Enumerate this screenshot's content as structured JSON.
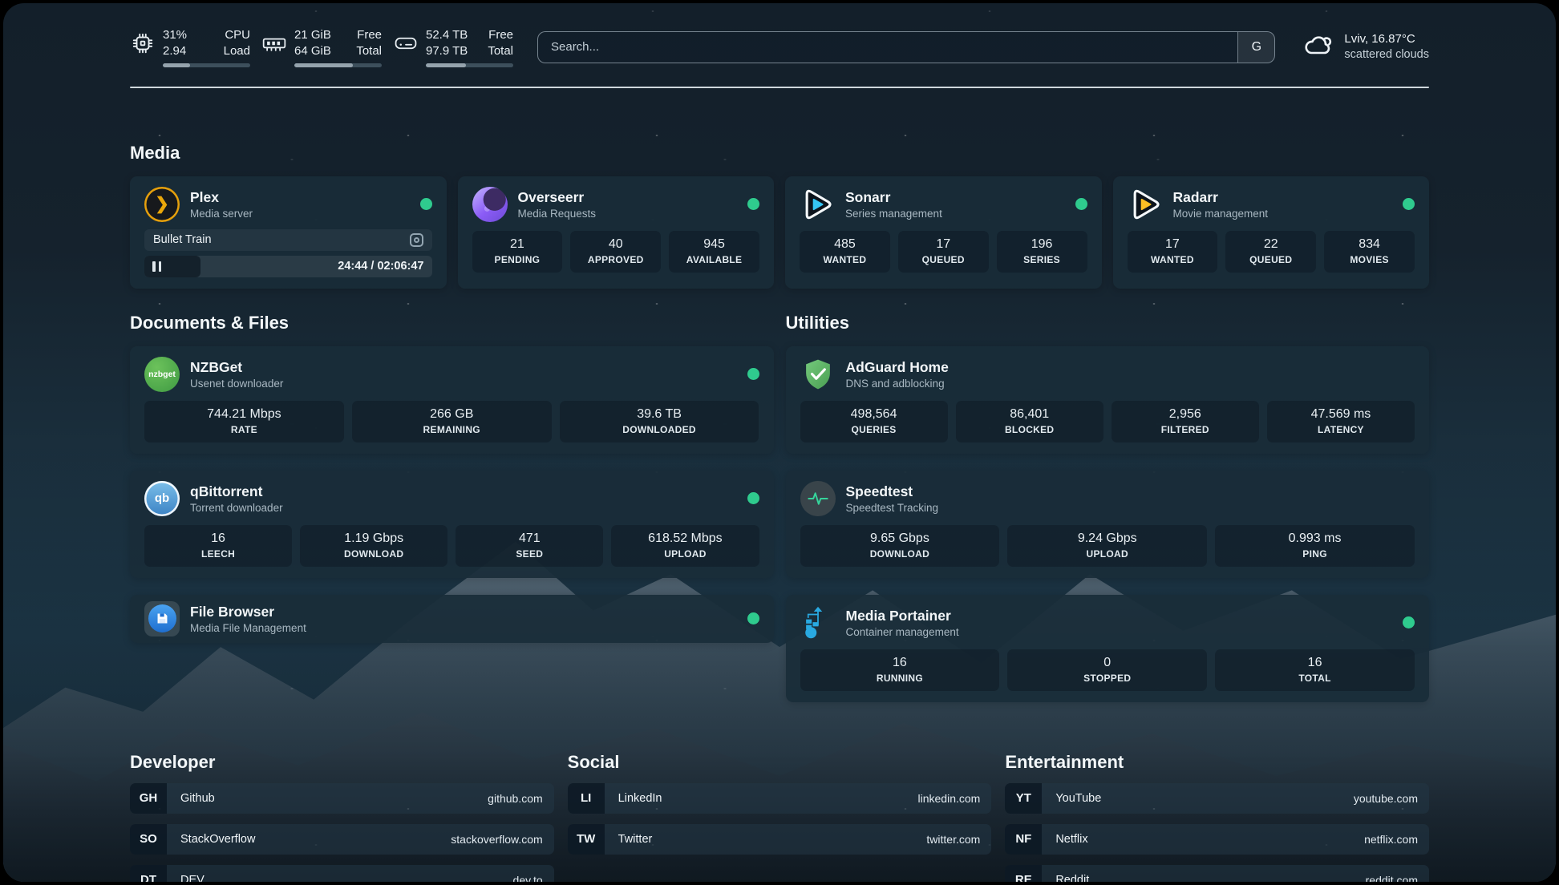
{
  "colors": {
    "status_online": "#2fcb8e",
    "divider": "#e9f0f5",
    "card_bg": "#192c38",
    "accent_plex": "#e5a00d"
  },
  "topbar": {
    "cpu": {
      "icon": "cpu-icon",
      "values": [
        "31%",
        "2.94"
      ],
      "labels": [
        "CPU",
        "Load"
      ],
      "usage_pct": 31
    },
    "memory": {
      "icon": "ram-icon",
      "values": [
        "21 GiB",
        "64 GiB"
      ],
      "labels": [
        "Free",
        "Total"
      ],
      "usage_pct": 67
    },
    "disk": {
      "icon": "disk-icon",
      "values": [
        "52.4 TB",
        "97.9 TB"
      ],
      "labels": [
        "Free",
        "Total"
      ],
      "usage_pct": 46
    },
    "search": {
      "placeholder": "Search...",
      "provider_label": "G"
    },
    "weather": {
      "icon": "cloud-icon",
      "location_temperature": "Lviv, 16.87°C",
      "condition": "scattered clouds"
    }
  },
  "sections": {
    "media": "Media",
    "documents": "Documents & Files",
    "utilities": "Utilities"
  },
  "apps": {
    "plex": {
      "icon": "plex-icon",
      "title": "Plex",
      "subtitle": "Media server",
      "status": "online",
      "now_playing": "Bullet Train",
      "time": "24:44 / 02:06:47",
      "progress_pct": 19.5
    },
    "overseerr": {
      "icon": "overseerr-icon",
      "title": "Overseerr",
      "subtitle": "Media Requests",
      "status": "online",
      "stats": [
        {
          "value": "21",
          "label": "PENDING"
        },
        {
          "value": "40",
          "label": "APPROVED"
        },
        {
          "value": "945",
          "label": "AVAILABLE"
        }
      ]
    },
    "sonarr": {
      "icon": "sonarr-icon",
      "title": "Sonarr",
      "subtitle": "Series management",
      "status": "online",
      "stats": [
        {
          "value": "485",
          "label": "WANTED"
        },
        {
          "value": "17",
          "label": "QUEUED"
        },
        {
          "value": "196",
          "label": "SERIES"
        }
      ]
    },
    "radarr": {
      "icon": "radarr-icon",
      "title": "Radarr",
      "subtitle": "Movie management",
      "status": "online",
      "stats": [
        {
          "value": "17",
          "label": "WANTED"
        },
        {
          "value": "22",
          "label": "QUEUED"
        },
        {
          "value": "834",
          "label": "MOVIES"
        }
      ]
    },
    "nzbget": {
      "icon": "nzbget-icon",
      "title": "NZBGet",
      "subtitle": "Usenet downloader",
      "status": "online",
      "badge_text": "nzbget",
      "stats": [
        {
          "value": "744.21 Mbps",
          "label": "RATE"
        },
        {
          "value": "266 GB",
          "label": "REMAINING"
        },
        {
          "value": "39.6 TB",
          "label": "DOWNLOADED"
        }
      ]
    },
    "qbittorrent": {
      "icon": "qbittorrent-icon",
      "title": "qBittorrent",
      "subtitle": "Torrent downloader",
      "status": "online",
      "badge_text": "qb",
      "stats": [
        {
          "value": "16",
          "label": "LEECH"
        },
        {
          "value": "1.19 Gbps",
          "label": "DOWNLOAD"
        },
        {
          "value": "471",
          "label": "SEED"
        },
        {
          "value": "618.52 Mbps",
          "label": "UPLOAD"
        }
      ]
    },
    "filebrowser": {
      "icon": "filebrowser-icon",
      "title": "File Browser",
      "subtitle": "Media File Management",
      "status": "online"
    },
    "adguard": {
      "icon": "adguard-icon",
      "title": "AdGuard Home",
      "subtitle": "DNS and adblocking",
      "stats": [
        {
          "value": "498,564",
          "label": "QUERIES"
        },
        {
          "value": "86,401",
          "label": "BLOCKED"
        },
        {
          "value": "2,956",
          "label": "FILTERED"
        },
        {
          "value": "47.569 ms",
          "label": "LATENCY"
        }
      ]
    },
    "speedtest": {
      "icon": "speedtest-icon",
      "title": "Speedtest",
      "subtitle": "Speedtest Tracking",
      "stats": [
        {
          "value": "9.65 Gbps",
          "label": "DOWNLOAD"
        },
        {
          "value": "9.24 Gbps",
          "label": "UPLOAD"
        },
        {
          "value": "0.993 ms",
          "label": "PING"
        }
      ]
    },
    "portainer": {
      "icon": "portainer-icon",
      "title": "Media Portainer",
      "subtitle": "Container management",
      "status": "online",
      "stats": [
        {
          "value": "16",
          "label": "RUNNING"
        },
        {
          "value": "0",
          "label": "STOPPED"
        },
        {
          "value": "16",
          "label": "TOTAL"
        }
      ]
    }
  },
  "bookmarks": {
    "groups": [
      {
        "title": "Developer",
        "items": [
          {
            "abbr": "GH",
            "name": "Github",
            "url": "github.com"
          },
          {
            "abbr": "SO",
            "name": "StackOverflow",
            "url": "stackoverflow.com"
          },
          {
            "abbr": "DT",
            "name": "DEV",
            "url": "dev.to"
          }
        ]
      },
      {
        "title": "Social",
        "items": [
          {
            "abbr": "LI",
            "name": "LinkedIn",
            "url": "linkedin.com"
          },
          {
            "abbr": "TW",
            "name": "Twitter",
            "url": "twitter.com"
          }
        ]
      },
      {
        "title": "Entertainment",
        "items": [
          {
            "abbr": "YT",
            "name": "YouTube",
            "url": "youtube.com"
          },
          {
            "abbr": "NF",
            "name": "Netflix",
            "url": "netflix.com"
          },
          {
            "abbr": "RE",
            "name": "Reddit",
            "url": "reddit.com"
          }
        ]
      }
    ]
  }
}
